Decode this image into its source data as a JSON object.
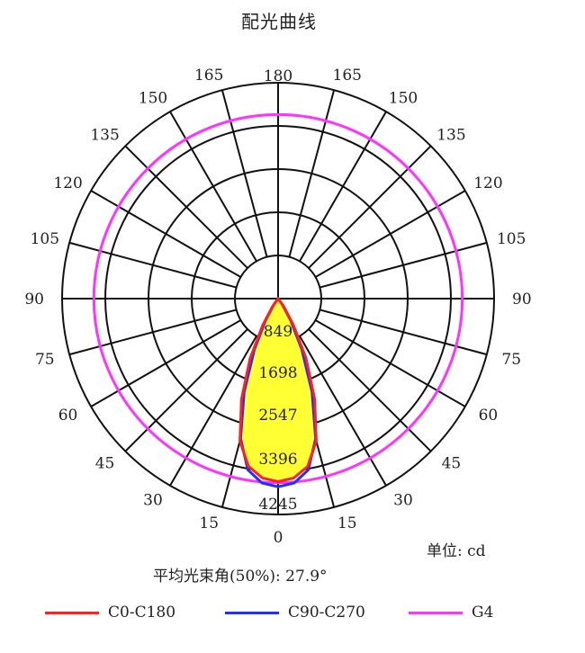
{
  "title": "配光曲线",
  "unit_label": "单位: cd",
  "beam_angle_label": "平均光束角(50%): 27.9°",
  "chart_data": {
    "type": "polar",
    "title": "配光曲线",
    "angle_labels": {
      "right": [
        "0",
        "15",
        "30",
        "45",
        "60",
        "75",
        "90",
        "105",
        "120",
        "135",
        "150",
        "165",
        "180"
      ],
      "left": [
        "15",
        "30",
        "45",
        "60",
        "75",
        "90",
        "105",
        "120",
        "135",
        "150",
        "165"
      ]
    },
    "radial_ticks": [
      "849",
      "1698",
      "2547",
      "3396",
      "4245"
    ],
    "rmax": 4245,
    "grid": true,
    "fill_color": "#ffff33",
    "series": [
      {
        "name": "C0-C180",
        "color": "#ff2020",
        "points": [
          {
            "angle": 0,
            "value": 3600
          },
          {
            "angle": 5,
            "value": 3540
          },
          {
            "angle": 10,
            "value": 3350
          },
          {
            "angle": 15,
            "value": 2900
          },
          {
            "angle": 20,
            "value": 2100
          },
          {
            "angle": 25,
            "value": 1300
          },
          {
            "angle": 30,
            "value": 600
          },
          {
            "angle": 35,
            "value": 200
          },
          {
            "angle": 40,
            "value": 30
          },
          {
            "angle": 45,
            "value": 0
          }
        ]
      },
      {
        "name": "C90-C270",
        "color": "#2030ff",
        "points": [
          {
            "angle": 0,
            "value": 3700
          },
          {
            "angle": 5,
            "value": 3640
          },
          {
            "angle": 10,
            "value": 3420
          },
          {
            "angle": 15,
            "value": 2850
          },
          {
            "angle": 20,
            "value": 1950
          },
          {
            "angle": 25,
            "value": 1100
          },
          {
            "angle": 30,
            "value": 500
          },
          {
            "angle": 35,
            "value": 150
          },
          {
            "angle": 40,
            "value": 20
          },
          {
            "angle": 45,
            "value": 0
          }
        ]
      },
      {
        "name": "G4",
        "color": "#ff33ff",
        "constant_value": 3620
      }
    ]
  }
}
